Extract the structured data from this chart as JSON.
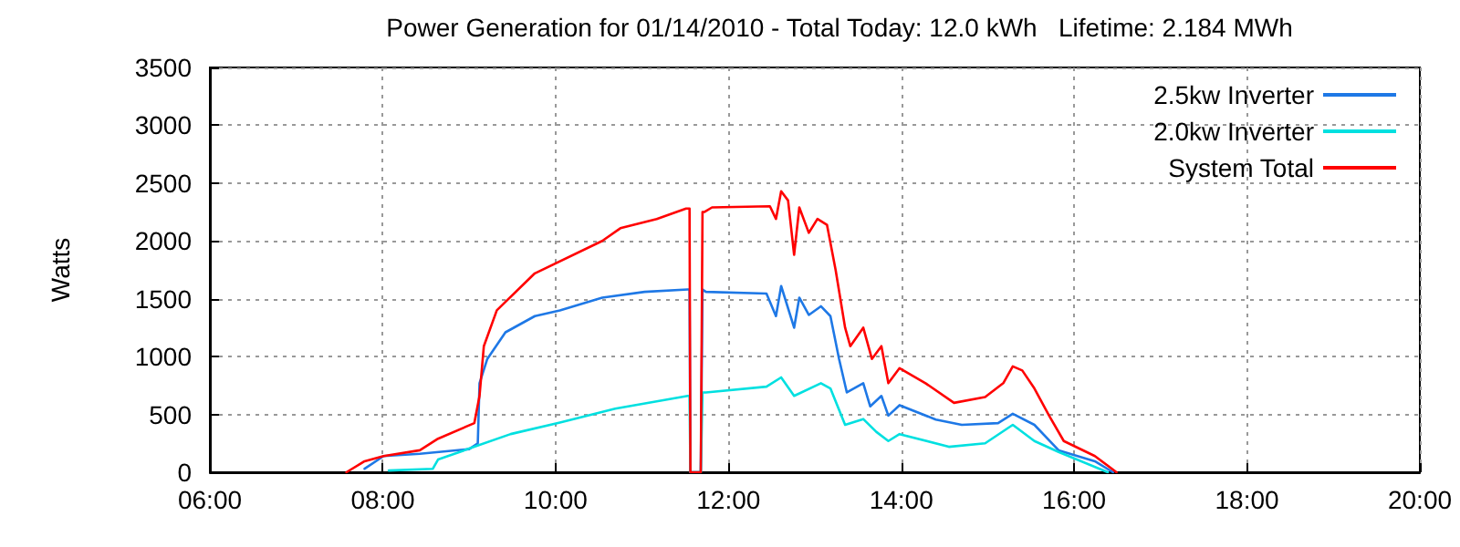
{
  "chart_data": {
    "type": "line",
    "title": "Power Generation for 01/14/2010 - Total Today: 12.0 kWh   Lifetime: 2.184 MWh",
    "ylabel": "Watts",
    "xlim": [
      6,
      20
    ],
    "xticks": [
      {
        "value": 6,
        "label": "06:00"
      },
      {
        "value": 8,
        "label": "08:00"
      },
      {
        "value": 10,
        "label": "10:00"
      },
      {
        "value": 12,
        "label": "12:00"
      },
      {
        "value": 14,
        "label": "14:00"
      },
      {
        "value": 16,
        "label": "16:00"
      },
      {
        "value": 18,
        "label": "18:00"
      },
      {
        "value": 20,
        "label": "20:00"
      }
    ],
    "ylim": [
      0,
      3500
    ],
    "yticks": [
      0,
      500,
      1000,
      1500,
      2000,
      2500,
      3000,
      3500
    ],
    "grid": true,
    "legend": "top right",
    "marker": "none",
    "line_style": "solid",
    "series": [
      {
        "name": "2.5kw Inverter",
        "color": "#1e78e6",
        "x": [
          7.79,
          8.01,
          8.43,
          9.0,
          9.1,
          9.12,
          9.21,
          9.42,
          9.76,
          10.05,
          10.54,
          11.03,
          11.53,
          11.55,
          11.56,
          11.68,
          11.7,
          11.74,
          12.44,
          12.55,
          12.61,
          12.76,
          12.82,
          12.93,
          13.07,
          13.18,
          13.28,
          13.37,
          13.56,
          13.64,
          13.77,
          13.85,
          13.98,
          14.4,
          14.7,
          15.12,
          15.29,
          15.54,
          15.82,
          16.24,
          16.45
        ],
        "values": [
          30,
          140,
          160,
          200,
          250,
          770,
          980,
          1210,
          1350,
          1400,
          1510,
          1560,
          1580,
          1580,
          0,
          0,
          1580,
          1560,
          1545,
          1350,
          1610,
          1250,
          1510,
          1360,
          1435,
          1350,
          980,
          690,
          770,
          570,
          660,
          490,
          580,
          455,
          410,
          425,
          505,
          410,
          190,
          95,
          0
        ]
      },
      {
        "name": "2.0kw Inverter",
        "color": "#00e0e0",
        "x": [
          8.07,
          8.58,
          8.64,
          9.06,
          9.48,
          10.05,
          10.69,
          11.53,
          11.55,
          11.56,
          11.68,
          11.7,
          11.74,
          12.44,
          12.61,
          12.76,
          13.07,
          13.18,
          13.35,
          13.56,
          13.71,
          13.85,
          13.98,
          14.55,
          14.97,
          15.29,
          15.54,
          15.82,
          16.39
        ],
        "values": [
          15,
          30,
          110,
          220,
          330,
          430,
          550,
          660,
          660,
          0,
          0,
          690,
          690,
          740,
          820,
          660,
          770,
          725,
          410,
          460,
          350,
          270,
          330,
          220,
          250,
          410,
          270,
          175,
          0
        ]
      },
      {
        "name": "System Total",
        "color": "#ff0000",
        "x": [
          7.58,
          7.79,
          8.01,
          8.43,
          8.64,
          9.06,
          9.12,
          9.17,
          9.32,
          9.76,
          10.54,
          10.75,
          11.17,
          11.51,
          11.55,
          11.56,
          11.68,
          11.7,
          11.72,
          11.81,
          12.48,
          12.55,
          12.61,
          12.69,
          12.76,
          12.82,
          12.93,
          13.03,
          13.14,
          13.24,
          13.35,
          13.41,
          13.56,
          13.66,
          13.77,
          13.85,
          13.98,
          14.28,
          14.61,
          14.97,
          15.18,
          15.29,
          15.4,
          15.54,
          15.71,
          15.88,
          16.24,
          16.49
        ],
        "values": [
          0,
          95,
          140,
          190,
          290,
          425,
          660,
          1090,
          1400,
          1720,
          2000,
          2110,
          2190,
          2280,
          2280,
          0,
          0,
          2250,
          2250,
          2290,
          2300,
          2190,
          2430,
          2350,
          1880,
          2290,
          2070,
          2190,
          2140,
          1750,
          1250,
          1090,
          1250,
          980,
          1090,
          770,
          900,
          770,
          600,
          650,
          770,
          915,
          880,
          725,
          490,
          270,
          140,
          0
        ]
      }
    ]
  }
}
